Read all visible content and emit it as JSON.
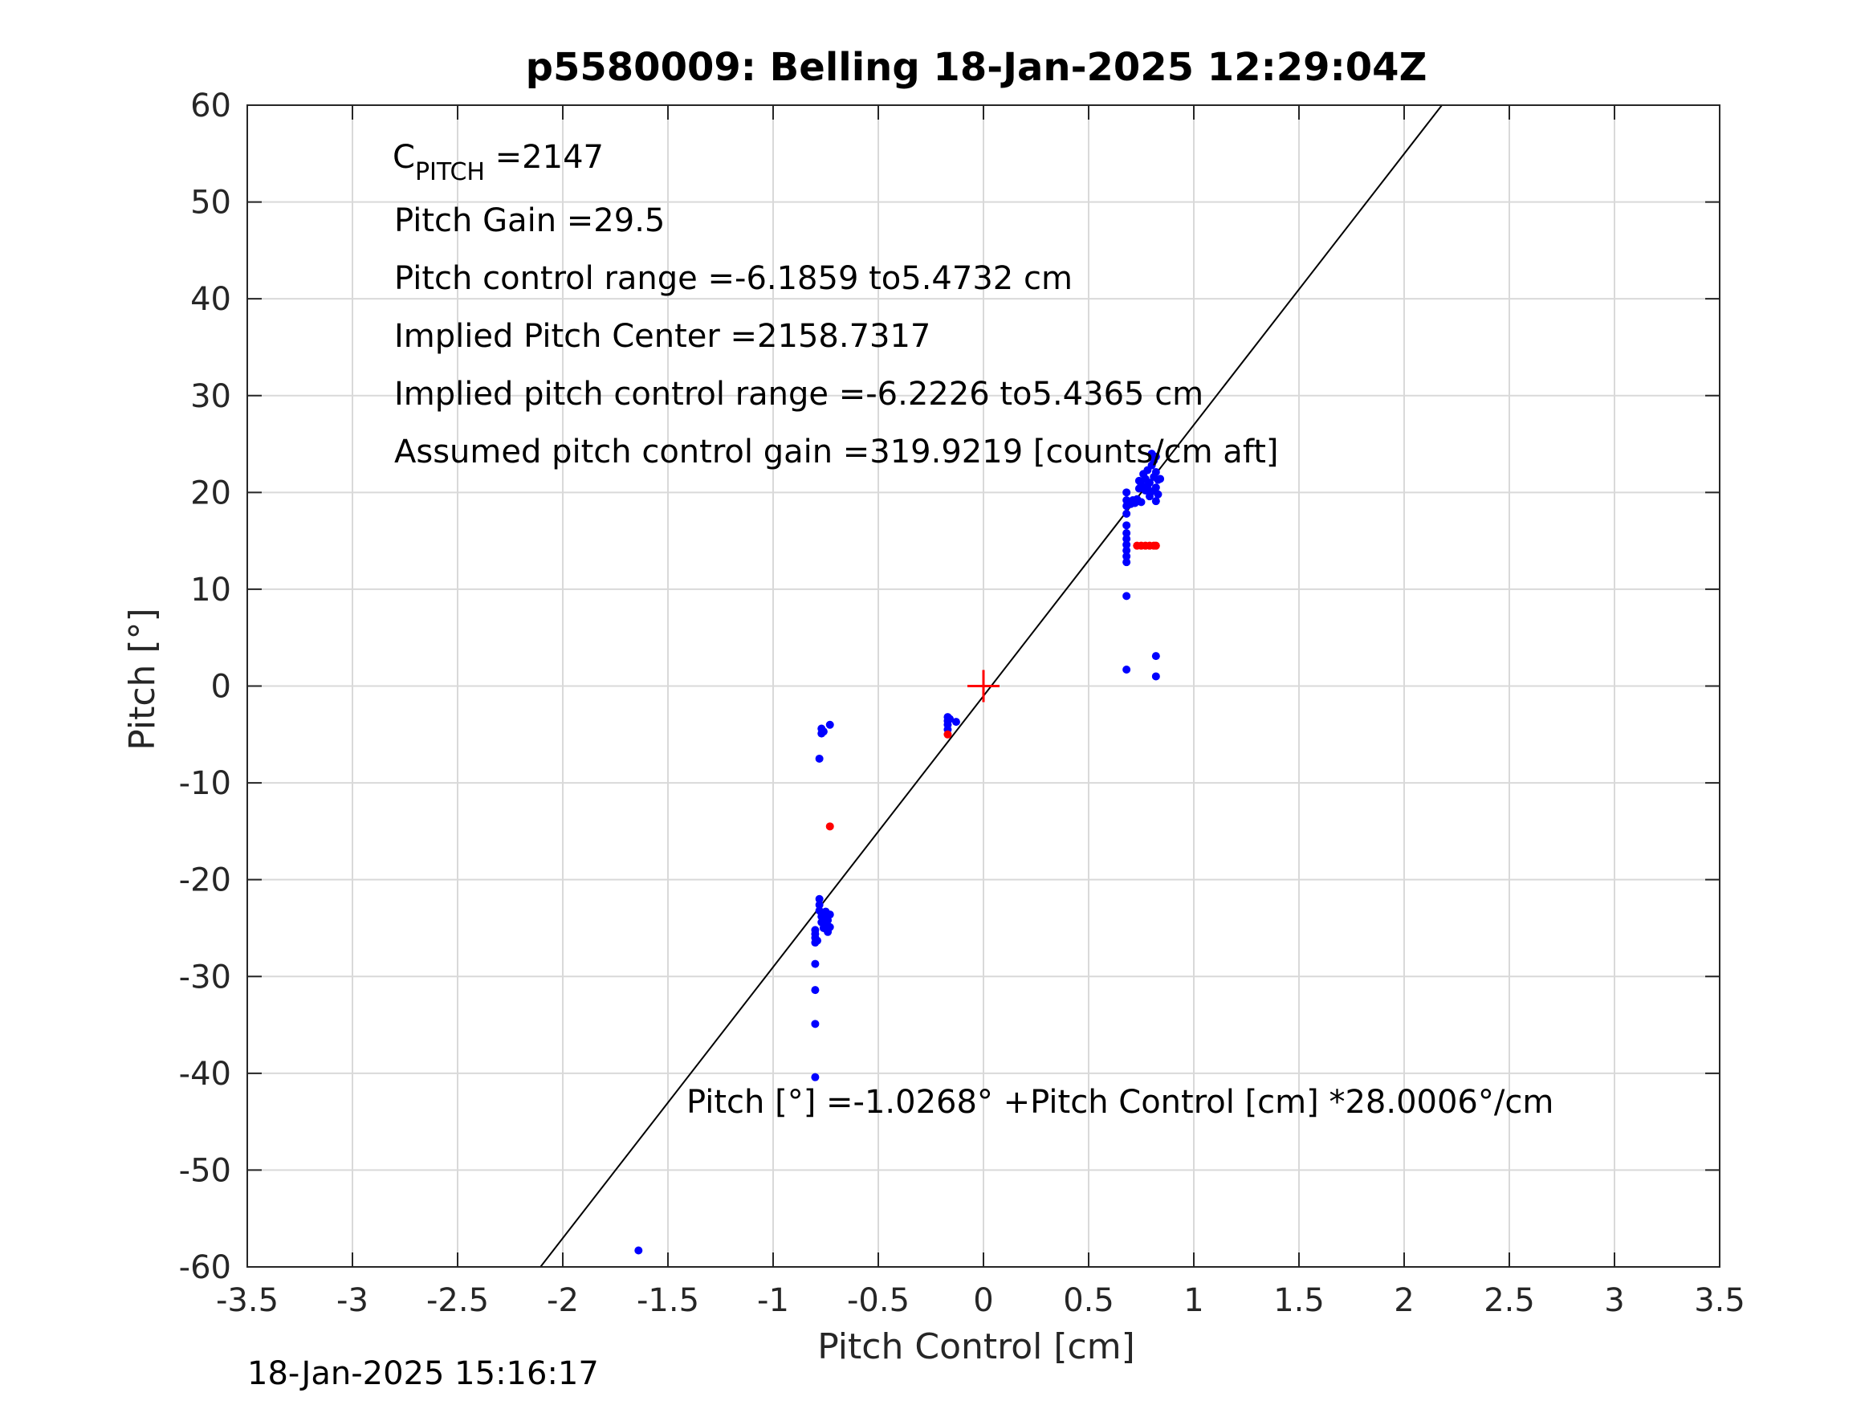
{
  "footer_timestamp": "18-Jan-2025 15:16:17",
  "chart_data": {
    "type": "scatter",
    "title": "p5580009: Belling 18-Jan-2025 12:29:04Z",
    "xlabel": "Pitch Control [cm]",
    "ylabel": "Pitch [°]",
    "xlim": [
      -3.5,
      3.5
    ],
    "ylim": [
      -60,
      60
    ],
    "xticks": [
      -3.5,
      -3,
      -2.5,
      -2,
      -1.5,
      -1,
      -0.5,
      0,
      0.5,
      1,
      1.5,
      2,
      2.5,
      3,
      3.5
    ],
    "yticks": [
      -60,
      -50,
      -40,
      -30,
      -20,
      -10,
      0,
      10,
      20,
      30,
      40,
      50,
      60
    ],
    "grid": true,
    "annotations": {
      "cpitch_main": "C",
      "cpitch_sub": "PITCH",
      "cpitch_value": " =2147",
      "lines": [
        "Pitch Gain =29.5",
        "Pitch control range =-6.1859 to5.4732 cm",
        "Implied Pitch Center =2158.7317",
        "Implied pitch control range =-6.2226 to5.4365 cm",
        "Assumed pitch control gain =319.9219 [counts/cm aft]"
      ],
      "fit_equation": "Pitch [°] =-1.0268° +Pitch Control [cm] *28.0006°/cm"
    },
    "fit_line": {
      "intercept": -1.0268,
      "slope": 28.0006,
      "color": "#000000"
    },
    "center_marker": {
      "x": 0,
      "y": 0,
      "color": "#ff0000"
    },
    "series": [
      {
        "color": "#0000ff",
        "points": [
          [
            -1.64,
            -58.3
          ],
          [
            -0.8,
            -40.4
          ],
          [
            -0.8,
            -34.9
          ],
          [
            -0.8,
            -31.4
          ],
          [
            -0.8,
            -28.7
          ],
          [
            -0.8,
            -26.5
          ],
          [
            -0.8,
            -26.0
          ],
          [
            -0.8,
            -25.6
          ],
          [
            -0.8,
            -25.2
          ],
          [
            -0.79,
            -26.3
          ],
          [
            -0.78,
            -22.0
          ],
          [
            -0.78,
            -22.6
          ],
          [
            -0.78,
            -23.2
          ],
          [
            -0.77,
            -23.8
          ],
          [
            -0.77,
            -24.4
          ],
          [
            -0.76,
            -25.0
          ],
          [
            -0.76,
            -24.0
          ],
          [
            -0.75,
            -23.3
          ],
          [
            -0.75,
            -24.6
          ],
          [
            -0.74,
            -25.4
          ],
          [
            -0.74,
            -24.2
          ],
          [
            -0.73,
            -23.6
          ],
          [
            -0.73,
            -24.9
          ],
          [
            -0.77,
            -4.4
          ],
          [
            -0.77,
            -4.9
          ],
          [
            -0.76,
            -4.7
          ],
          [
            -0.73,
            -4.0
          ],
          [
            -0.78,
            -7.5
          ],
          [
            -0.17,
            -3.2
          ],
          [
            -0.17,
            -3.6
          ],
          [
            -0.17,
            -4.0
          ],
          [
            -0.17,
            -4.5
          ],
          [
            -0.16,
            -3.4
          ],
          [
            -0.13,
            -3.7
          ],
          [
            0.68,
            1.7
          ],
          [
            0.68,
            9.3
          ],
          [
            0.68,
            12.8
          ],
          [
            0.68,
            13.4
          ],
          [
            0.68,
            14.0
          ],
          [
            0.68,
            14.6
          ],
          [
            0.68,
            15.2
          ],
          [
            0.68,
            15.8
          ],
          [
            0.68,
            16.6
          ],
          [
            0.68,
            17.8
          ],
          [
            0.68,
            18.6
          ],
          [
            0.68,
            19.2
          ],
          [
            0.68,
            20.0
          ],
          [
            0.7,
            18.8
          ],
          [
            0.71,
            19.2
          ],
          [
            0.72,
            18.9
          ],
          [
            0.73,
            19.3
          ],
          [
            0.74,
            20.4
          ],
          [
            0.74,
            21.2
          ],
          [
            0.75,
            19.0
          ],
          [
            0.75,
            20.8
          ],
          [
            0.76,
            21.9
          ],
          [
            0.77,
            20.2
          ],
          [
            0.77,
            21.4
          ],
          [
            0.78,
            20.7
          ],
          [
            0.78,
            22.3
          ],
          [
            0.79,
            19.6
          ],
          [
            0.79,
            21.0
          ],
          [
            0.8,
            22.8
          ],
          [
            0.8,
            20.1
          ],
          [
            0.81,
            21.6
          ],
          [
            0.81,
            23.3
          ],
          [
            0.82,
            20.5
          ],
          [
            0.82,
            19.1
          ],
          [
            0.82,
            22.1
          ],
          [
            0.83,
            21.3
          ],
          [
            0.83,
            19.8
          ],
          [
            0.84,
            21.4
          ],
          [
            0.82,
            23.7
          ],
          [
            0.8,
            24.0
          ],
          [
            0.82,
            3.1
          ],
          [
            0.82,
            1.0
          ]
        ]
      },
      {
        "color": "#ff0000",
        "points": [
          [
            -0.73,
            -14.5
          ],
          [
            -0.17,
            -5.0
          ],
          [
            0.73,
            14.5
          ],
          [
            0.75,
            14.5
          ],
          [
            0.77,
            14.5
          ],
          [
            0.79,
            14.5
          ],
          [
            0.81,
            14.5
          ],
          [
            0.82,
            14.5
          ]
        ]
      }
    ]
  }
}
